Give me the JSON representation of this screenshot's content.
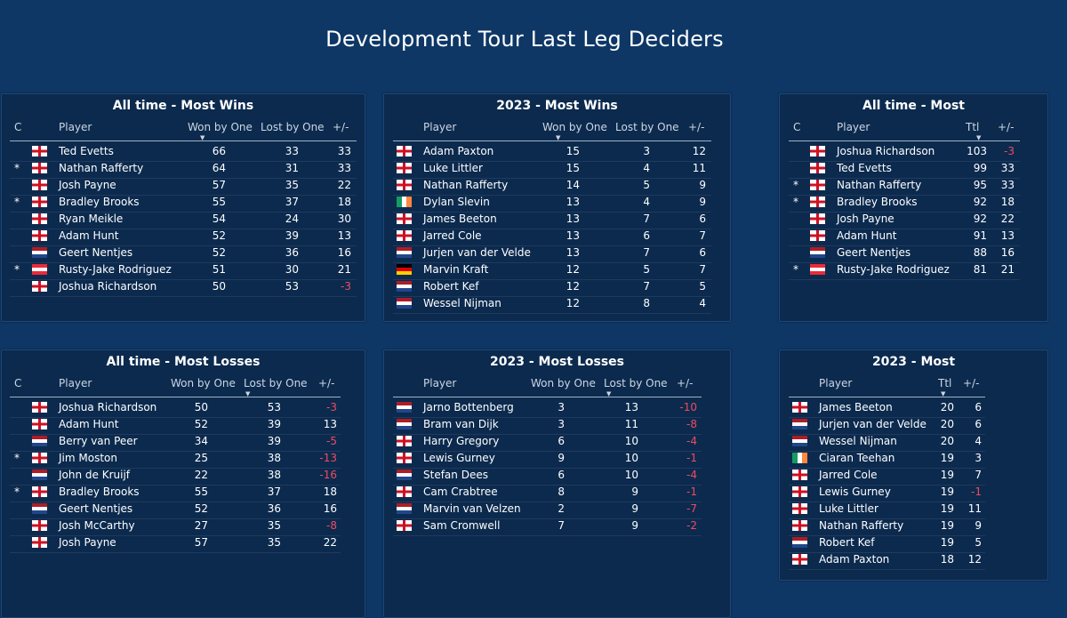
{
  "page_title": "Development Tour Last Leg Deciders",
  "panels": [
    {
      "title": "All time - Most Wins",
      "headers": [
        "C",
        "Player",
        "Won by One",
        "Lost by One",
        "+/-"
      ],
      "sorted_column": "Won by One",
      "rows": [
        {
          "c": "",
          "flag": "england",
          "player": "Ted Evetts",
          "won": "66",
          "lost": "33",
          "diff": "33"
        },
        {
          "c": "*",
          "flag": "england",
          "player": "Nathan Rafferty",
          "won": "64",
          "lost": "31",
          "diff": "33"
        },
        {
          "c": "",
          "flag": "england",
          "player": "Josh Payne",
          "won": "57",
          "lost": "35",
          "diff": "22"
        },
        {
          "c": "*",
          "flag": "england",
          "player": "Bradley Brooks",
          "won": "55",
          "lost": "37",
          "diff": "18"
        },
        {
          "c": "",
          "flag": "england",
          "player": "Ryan Meikle",
          "won": "54",
          "lost": "24",
          "diff": "30"
        },
        {
          "c": "",
          "flag": "england",
          "player": "Adam Hunt",
          "won": "52",
          "lost": "39",
          "diff": "13"
        },
        {
          "c": "",
          "flag": "netherlands",
          "player": "Geert Nentjes",
          "won": "52",
          "lost": "36",
          "diff": "16"
        },
        {
          "c": "*",
          "flag": "austria",
          "player": "Rusty-Jake Rodriguez",
          "won": "51",
          "lost": "30",
          "diff": "21"
        },
        {
          "c": "",
          "flag": "england",
          "player": "Joshua Richardson",
          "won": "50",
          "lost": "53",
          "diff": "-3"
        }
      ]
    },
    {
      "title": "2023 - Most Wins",
      "headers": [
        "Player",
        "Won by One",
        "Lost by One",
        "+/-"
      ],
      "sorted_column": "Won by One",
      "rows": [
        {
          "flag": "england",
          "player": "Adam Paxton",
          "won": "15",
          "lost": "3",
          "diff": "12"
        },
        {
          "flag": "england",
          "player": "Luke Littler",
          "won": "15",
          "lost": "4",
          "diff": "11"
        },
        {
          "flag": "england",
          "player": "Nathan Rafferty",
          "won": "14",
          "lost": "5",
          "diff": "9"
        },
        {
          "flag": "ireland",
          "player": "Dylan Slevin",
          "won": "13",
          "lost": "4",
          "diff": "9"
        },
        {
          "flag": "england",
          "player": "James Beeton",
          "won": "13",
          "lost": "7",
          "diff": "6"
        },
        {
          "flag": "england",
          "player": "Jarred Cole",
          "won": "13",
          "lost": "6",
          "diff": "7"
        },
        {
          "flag": "netherlands",
          "player": "Jurjen van der Velde",
          "won": "13",
          "lost": "7",
          "diff": "6"
        },
        {
          "flag": "germany",
          "player": "Marvin Kraft",
          "won": "12",
          "lost": "5",
          "diff": "7"
        },
        {
          "flag": "netherlands",
          "player": "Robert Kef",
          "won": "12",
          "lost": "7",
          "diff": "5"
        },
        {
          "flag": "netherlands",
          "player": "Wessel Nijman",
          "won": "12",
          "lost": "8",
          "diff": "4"
        }
      ]
    },
    {
      "title": "All time - Most",
      "headers": [
        "C",
        "Player",
        "Ttl",
        "+/-"
      ],
      "sorted_column": "Ttl",
      "rows": [
        {
          "c": "",
          "flag": "england",
          "player": "Joshua Richardson",
          "ttl": "103",
          "diff": "-3"
        },
        {
          "c": "",
          "flag": "england",
          "player": "Ted Evetts",
          "ttl": "99",
          "diff": "33"
        },
        {
          "c": "*",
          "flag": "england",
          "player": "Nathan Rafferty",
          "ttl": "95",
          "diff": "33"
        },
        {
          "c": "*",
          "flag": "england",
          "player": "Bradley Brooks",
          "ttl": "92",
          "diff": "18"
        },
        {
          "c": "",
          "flag": "england",
          "player": "Josh Payne",
          "ttl": "92",
          "diff": "22"
        },
        {
          "c": "",
          "flag": "england",
          "player": "Adam Hunt",
          "ttl": "91",
          "diff": "13"
        },
        {
          "c": "",
          "flag": "netherlands",
          "player": "Geert Nentjes",
          "ttl": "88",
          "diff": "16"
        },
        {
          "c": "*",
          "flag": "austria",
          "player": "Rusty-Jake Rodriguez",
          "ttl": "81",
          "diff": "21"
        }
      ]
    },
    {
      "title": "All time - Most Losses",
      "headers": [
        "C",
        "Player",
        "Won by One",
        "Lost by One",
        "+/-"
      ],
      "sorted_column": "Lost by One",
      "rows": [
        {
          "c": "",
          "flag": "england",
          "player": "Joshua Richardson",
          "won": "50",
          "lost": "53",
          "diff": "-3"
        },
        {
          "c": "",
          "flag": "england",
          "player": "Adam Hunt",
          "won": "52",
          "lost": "39",
          "diff": "13"
        },
        {
          "c": "",
          "flag": "netherlands",
          "player": "Berry van Peer",
          "won": "34",
          "lost": "39",
          "diff": "-5"
        },
        {
          "c": "*",
          "flag": "england",
          "player": "Jim Moston",
          "won": "25",
          "lost": "38",
          "diff": "-13"
        },
        {
          "c": "",
          "flag": "netherlands",
          "player": "John de Kruijf",
          "won": "22",
          "lost": "38",
          "diff": "-16"
        },
        {
          "c": "*",
          "flag": "england",
          "player": "Bradley Brooks",
          "won": "55",
          "lost": "37",
          "diff": "18"
        },
        {
          "c": "",
          "flag": "netherlands",
          "player": "Geert Nentjes",
          "won": "52",
          "lost": "36",
          "diff": "16"
        },
        {
          "c": "",
          "flag": "england",
          "player": "Josh McCarthy",
          "won": "27",
          "lost": "35",
          "diff": "-8"
        },
        {
          "c": "",
          "flag": "england",
          "player": "Josh Payne",
          "won": "57",
          "lost": "35",
          "diff": "22"
        }
      ]
    },
    {
      "title": "2023 - Most Losses",
      "headers": [
        "Player",
        "Won by One",
        "Lost by One",
        "+/-"
      ],
      "sorted_column": "Lost by One",
      "rows": [
        {
          "flag": "netherlands",
          "player": "Jarno Bottenberg",
          "won": "3",
          "lost": "13",
          "diff": "-10"
        },
        {
          "flag": "netherlands",
          "player": "Bram van Dijk",
          "won": "3",
          "lost": "11",
          "diff": "-8"
        },
        {
          "flag": "england",
          "player": "Harry Gregory",
          "won": "6",
          "lost": "10",
          "diff": "-4"
        },
        {
          "flag": "england",
          "player": "Lewis Gurney",
          "won": "9",
          "lost": "10",
          "diff": "-1"
        },
        {
          "flag": "netherlands",
          "player": "Stefan Dees",
          "won": "6",
          "lost": "10",
          "diff": "-4"
        },
        {
          "flag": "england",
          "player": "Cam Crabtree",
          "won": "8",
          "lost": "9",
          "diff": "-1"
        },
        {
          "flag": "netherlands",
          "player": "Marvin van Velzen",
          "won": "2",
          "lost": "9",
          "diff": "-7"
        },
        {
          "flag": "england",
          "player": "Sam Cromwell",
          "won": "7",
          "lost": "9",
          "diff": "-2"
        }
      ]
    },
    {
      "title": "2023 - Most",
      "headers": [
        "Player",
        "Ttl",
        "+/-"
      ],
      "sorted_column": "Ttl",
      "rows": [
        {
          "flag": "england",
          "player": "James Beeton",
          "ttl": "20",
          "diff": "6"
        },
        {
          "flag": "netherlands",
          "player": "Jurjen van der Velde",
          "ttl": "20",
          "diff": "6"
        },
        {
          "flag": "netherlands",
          "player": "Wessel Nijman",
          "ttl": "20",
          "diff": "4"
        },
        {
          "flag": "ireland",
          "player": "Ciaran Teehan",
          "ttl": "19",
          "diff": "3"
        },
        {
          "flag": "england",
          "player": "Jarred Cole",
          "ttl": "19",
          "diff": "7"
        },
        {
          "flag": "england",
          "player": "Lewis Gurney",
          "ttl": "19",
          "diff": "-1"
        },
        {
          "flag": "england",
          "player": "Luke Littler",
          "ttl": "19",
          "diff": "11"
        },
        {
          "flag": "england",
          "player": "Nathan Rafferty",
          "ttl": "19",
          "diff": "9"
        },
        {
          "flag": "netherlands",
          "player": "Robert Kef",
          "ttl": "19",
          "diff": "5"
        },
        {
          "flag": "england",
          "player": "Adam Paxton",
          "ttl": "18",
          "diff": "12"
        }
      ]
    }
  ]
}
